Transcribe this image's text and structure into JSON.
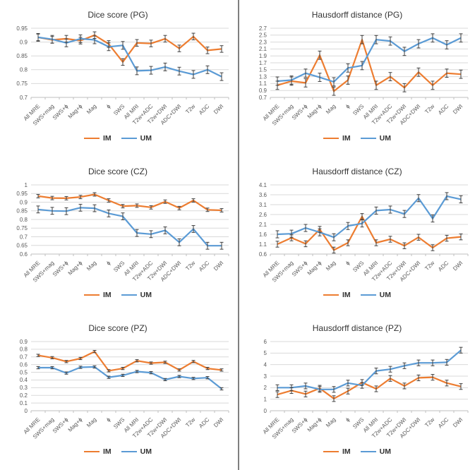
{
  "colors": {
    "im": "#ED7D31",
    "um": "#5B9BD5",
    "grid": "#D9D9D9",
    "axis_line": "#BFBFBF",
    "axis_text": "#595959",
    "title_text": "#333333",
    "error_bar": "#404040",
    "divider": "#7F7F7F"
  },
  "legend": {
    "im_label": "IM",
    "um_label": "UM"
  },
  "categories": [
    "All MRE",
    "SWS+mag",
    "SWS+ɸ",
    "Mag+ɸ",
    "Mag",
    "ɸ",
    "SWS",
    "All MRI",
    "T2w+ADC",
    "T2w+DWI",
    "ADC+DWI",
    "T2w",
    "ADC",
    "DWI"
  ],
  "chart_data": [
    {
      "type": "line",
      "title": "Dice score (PG)",
      "ylim": [
        0.7,
        0.95
      ],
      "yticks": [
        "0.95",
        "0.9",
        "0.85",
        "0.8",
        "0.75",
        "0.7"
      ],
      "legend_position": "bottom",
      "grid": true,
      "series": [
        {
          "name": "IM",
          "error": 0.012,
          "values": [
            0.917,
            0.908,
            0.912,
            0.905,
            0.925,
            0.893,
            0.828,
            0.897,
            0.895,
            0.912,
            0.877,
            0.92,
            0.87,
            0.875
          ]
        },
        {
          "name": "UM",
          "error": 0.014,
          "values": [
            0.917,
            0.91,
            0.897,
            0.912,
            0.908,
            0.883,
            0.888,
            0.796,
            0.798,
            0.81,
            0.795,
            0.783,
            0.8,
            0.775
          ]
        }
      ]
    },
    {
      "type": "line",
      "title": "Hausdorff distance (PG)",
      "ylim": [
        0.7,
        2.7
      ],
      "yticks": [
        "2.7",
        "2.5",
        "2.3",
        "2.1",
        "1.9",
        "1.7",
        "1.5",
        "1.3",
        "1.1",
        "0.9",
        "0.7"
      ],
      "legend_position": "bottom",
      "grid": true,
      "series": [
        {
          "name": "IM",
          "error": 0.12,
          "values": [
            1.05,
            1.17,
            1.12,
            1.92,
            0.88,
            1.2,
            2.37,
            1.05,
            1.3,
            0.98,
            1.43,
            1.05,
            1.4,
            1.37
          ]
        },
        {
          "name": "UM",
          "error": 0.12,
          "values": [
            1.17,
            1.2,
            1.4,
            1.28,
            1.15,
            1.55,
            1.62,
            2.37,
            2.33,
            2.03,
            2.25,
            2.42,
            2.22,
            2.42
          ]
        }
      ]
    },
    {
      "type": "line",
      "title": "Dice score (CZ)",
      "ylim": [
        0.6,
        1.0
      ],
      "yticks": [
        "1",
        "0.95",
        "0.9",
        "0.85",
        "0.8",
        "0.75",
        "0.7",
        "0.65",
        "0.6"
      ],
      "legend_position": "bottom",
      "grid": true,
      "series": [
        {
          "name": "IM",
          "error": 0.01,
          "values": [
            0.935,
            0.924,
            0.923,
            0.93,
            0.945,
            0.91,
            0.877,
            0.88,
            0.87,
            0.903,
            0.866,
            0.91,
            0.856,
            0.853
          ]
        },
        {
          "name": "UM",
          "error": 0.02,
          "values": [
            0.858,
            0.85,
            0.848,
            0.868,
            0.865,
            0.835,
            0.818,
            0.722,
            0.715,
            0.737,
            0.668,
            0.745,
            0.648,
            0.648
          ]
        }
      ]
    },
    {
      "type": "line",
      "title": "Hausdorff distance (CZ)",
      "ylim": [
        0.6,
        4.1
      ],
      "yticks": [
        "4.1",
        "3.6",
        "3.1",
        "2.6",
        "2.1",
        "1.6",
        "1.1",
        "0.6"
      ],
      "legend_position": "bottom",
      "grid": true,
      "series": [
        {
          "name": "IM",
          "error": 0.15,
          "values": [
            1.1,
            1.42,
            1.12,
            1.85,
            0.8,
            1.17,
            2.5,
            1.17,
            1.35,
            1.02,
            1.45,
            0.92,
            1.4,
            1.47
          ]
        },
        {
          "name": "UM",
          "error": 0.18,
          "values": [
            1.6,
            1.63,
            1.92,
            1.7,
            1.45,
            2.02,
            2.15,
            2.8,
            2.85,
            2.63,
            3.43,
            2.4,
            3.53,
            3.37
          ]
        }
      ]
    },
    {
      "type": "line",
      "title": "Dice score (PZ)",
      "ylim": [
        0,
        0.9
      ],
      "yticks": [
        "0.9",
        "0.8",
        "0.7",
        "0.6",
        "0.5",
        "0.4",
        "0.3",
        "0.2",
        "0.1",
        "0"
      ],
      "legend_position": "bottom",
      "grid": true,
      "series": [
        {
          "name": "IM",
          "error": 0.015,
          "values": [
            0.72,
            0.69,
            0.64,
            0.68,
            0.77,
            0.52,
            0.55,
            0.65,
            0.62,
            0.63,
            0.53,
            0.64,
            0.55,
            0.53
          ]
        },
        {
          "name": "UM",
          "error": 0.015,
          "values": [
            0.56,
            0.56,
            0.49,
            0.565,
            0.57,
            0.435,
            0.46,
            0.51,
            0.495,
            0.405,
            0.445,
            0.42,
            0.43,
            0.285
          ]
        }
      ]
    },
    {
      "type": "line",
      "title": "Hausdorff distance (PZ)",
      "ylim": [
        0,
        6
      ],
      "yticks": [
        "6",
        "5",
        "4",
        "3",
        "2",
        "1",
        "0"
      ],
      "legend_position": "bottom",
      "grid": true,
      "series": [
        {
          "name": "IM",
          "error": 0.25,
          "values": [
            1.4,
            1.75,
            1.45,
            1.95,
            1.05,
            1.7,
            2.45,
            1.9,
            2.8,
            2.15,
            2.85,
            2.9,
            2.4,
            2.1
          ]
        },
        {
          "name": "UM",
          "error": 0.25,
          "values": [
            2.0,
            2.0,
            2.15,
            1.85,
            1.85,
            2.4,
            2.2,
            3.45,
            3.6,
            3.9,
            4.15,
            4.15,
            4.2,
            5.25
          ]
        }
      ]
    }
  ]
}
